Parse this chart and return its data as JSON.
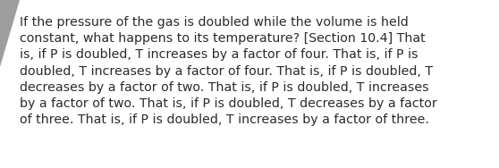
{
  "background_color": "#ffffff",
  "text_color": "#2b2b2b",
  "font_size": 10.2,
  "line1": "If the pressure of the gas is doubled while the volume is held",
  "line2": "constant, what happens to its temperature? [Section 10.4] That",
  "line3": "is, if P is doubled, T increases by a factor of four. That is, if P is",
  "line4": "doubled, T increases by a factor of four. That is, if P is doubled, T",
  "line5": "decreases by a factor of two. That is, if P is doubled, T increases",
  "line6": "by a factor of two. That is, if P is doubled, T decreases by a factor",
  "line7": "of three. That is, if P is doubled, T increases by a factor of three.",
  "triangle_color": "#9e9e9e",
  "fig_width": 5.58,
  "fig_height": 1.88,
  "dpi": 100
}
